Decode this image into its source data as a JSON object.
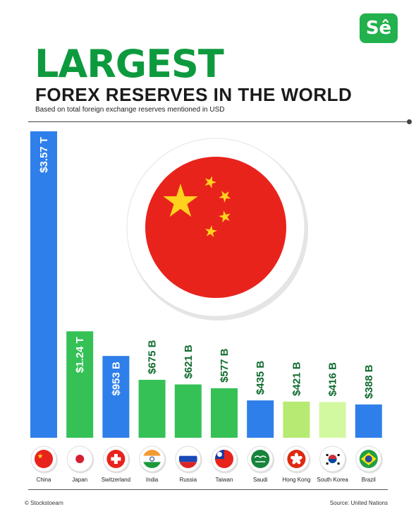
{
  "brand": {
    "logo_text": "Sê"
  },
  "header": {
    "title": "LARGEST",
    "subtitle": "FOREX RESERVES IN THE WORLD",
    "note": "Based on total foreign exchange reserves mentioned in USD"
  },
  "footer": {
    "credit": "© Stockstoearn",
    "source": "Source: United Nations"
  },
  "colors": {
    "title_green": "#0d9a3e",
    "logo_green": "#22b14c"
  },
  "chart_data": {
    "type": "bar",
    "categories": [
      "China",
      "Japan",
      "Switzerland",
      "India",
      "Russia",
      "Taiwan",
      "Saudi",
      "Hong Kong",
      "South Korea",
      "Brazil"
    ],
    "values": [
      3570,
      1240,
      953,
      675,
      621,
      577,
      435,
      421,
      416,
      388
    ],
    "unit": "USD billions",
    "labels": [
      "$3.57 T",
      "$1.24 T",
      "$953 B",
      "$675 B",
      "$621 B",
      "$577 B",
      "$435 B",
      "$421 B",
      "$416 B",
      "$388 B"
    ],
    "bar_colors": [
      "#2f7fea",
      "#35c156",
      "#2f7fea",
      "#35c156",
      "#35c156",
      "#35c156",
      "#2f7fea",
      "#b7ea72",
      "#d2f8a0",
      "#2f7fea"
    ],
    "flag_icons": [
      "china-flag-icon",
      "japan-flag-icon",
      "switzerland-flag-icon",
      "india-flag-icon",
      "russia-flag-icon",
      "taiwan-flag-icon",
      "saudi-flag-icon",
      "hong-kong-flag-icon",
      "south-korea-flag-icon",
      "brazil-flag-icon"
    ],
    "feature_icon": "china-flag-icon",
    "title": "",
    "xlabel": "",
    "ylabel": "",
    "grid": false,
    "legend": "none"
  }
}
